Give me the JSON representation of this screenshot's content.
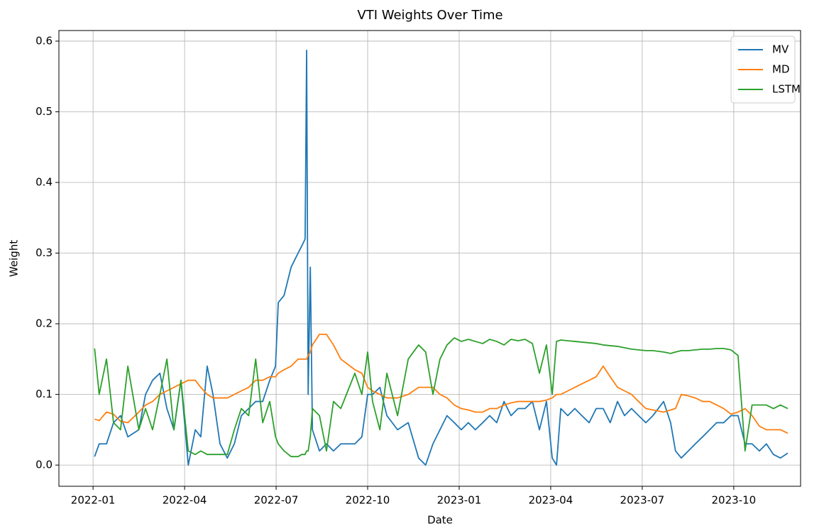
{
  "chart_data": {
    "type": "line",
    "title": "VTI Weights Over Time",
    "x_label": "Date",
    "y_label": "Weight",
    "x": [
      0.05,
      0.2,
      0.44,
      0.67,
      0.9,
      1.14,
      1.5,
      1.72,
      1.95,
      2.19,
      2.42,
      2.65,
      2.88,
      3.12,
      3.35,
      3.53,
      3.74,
      3.93,
      4.16,
      4.4,
      4.63,
      4.86,
      5.1,
      5.33,
      5.56,
      5.79,
      5.98,
      6.07,
      6.26,
      6.49,
      6.72,
      6.84,
      6.95,
      7.0,
      7.05,
      7.12,
      7.19,
      7.42,
      7.65,
      7.88,
      8.12,
      8.58,
      8.81,
      9.0,
      9.16,
      9.4,
      9.63,
      9.98,
      10.33,
      10.67,
      10.9,
      11.14,
      11.37,
      11.6,
      11.84,
      12.07,
      12.3,
      12.53,
      12.77,
      13.0,
      13.23,
      13.47,
      13.7,
      13.93,
      14.16,
      14.4,
      14.63,
      14.86,
      15.05,
      15.19,
      15.33,
      15.56,
      15.79,
      16.02,
      16.26,
      16.49,
      16.72,
      16.95,
      17.19,
      17.42,
      17.65,
      17.88,
      18.12,
      18.35,
      18.7,
      18.93,
      19.09,
      19.28,
      19.51,
      19.74,
      19.98,
      20.21,
      20.44,
      20.67,
      20.91,
      21.14,
      21.37,
      21.6,
      21.84,
      22.07,
      22.3,
      22.53,
      22.77
    ],
    "series": [
      {
        "name": "MV",
        "color": "#1f77b4",
        "values": [
          0.012,
          0.03,
          0.03,
          0.06,
          0.07,
          0.04,
          0.05,
          0.1,
          0.12,
          0.13,
          0.08,
          0.05,
          0.12,
          0.0,
          0.05,
          0.04,
          0.14,
          0.1,
          0.03,
          0.01,
          0.03,
          0.07,
          0.08,
          0.09,
          0.09,
          0.12,
          0.14,
          0.23,
          0.24,
          0.28,
          0.3,
          0.31,
          0.32,
          0.587,
          0.1,
          0.28,
          0.05,
          0.02,
          0.03,
          0.02,
          0.03,
          0.03,
          0.04,
          0.1,
          0.1,
          0.11,
          0.07,
          0.05,
          0.06,
          0.01,
          0.0,
          0.03,
          0.05,
          0.07,
          0.06,
          0.05,
          0.06,
          0.05,
          0.06,
          0.07,
          0.06,
          0.09,
          0.07,
          0.08,
          0.08,
          0.09,
          0.05,
          0.09,
          0.01,
          0.0,
          0.08,
          0.07,
          0.08,
          0.07,
          0.06,
          0.08,
          0.08,
          0.06,
          0.09,
          0.07,
          0.08,
          0.07,
          0.06,
          0.07,
          0.09,
          0.06,
          0.02,
          0.01,
          0.02,
          0.03,
          0.04,
          0.05,
          0.06,
          0.06,
          0.07,
          0.07,
          0.03,
          0.03,
          0.02,
          0.03,
          0.015,
          0.01,
          0.017
        ]
      },
      {
        "name": "MD",
        "color": "#ff7f0e",
        "values": [
          0.065,
          0.063,
          0.075,
          0.072,
          0.062,
          0.06,
          0.075,
          0.085,
          0.09,
          0.1,
          0.105,
          0.11,
          0.115,
          0.12,
          0.12,
          0.11,
          0.1,
          0.095,
          0.095,
          0.095,
          0.1,
          0.105,
          0.11,
          0.12,
          0.12,
          0.125,
          0.125,
          0.13,
          0.135,
          0.14,
          0.15,
          0.15,
          0.15,
          0.15,
          0.155,
          0.16,
          0.17,
          0.185,
          0.185,
          0.17,
          0.15,
          0.135,
          0.13,
          0.11,
          0.105,
          0.1,
          0.095,
          0.095,
          0.1,
          0.11,
          0.11,
          0.11,
          0.1,
          0.095,
          0.085,
          0.08,
          0.078,
          0.075,
          0.075,
          0.08,
          0.08,
          0.085,
          0.088,
          0.09,
          0.09,
          0.09,
          0.09,
          0.092,
          0.095,
          0.1,
          0.1,
          0.105,
          0.11,
          0.115,
          0.12,
          0.125,
          0.14,
          0.125,
          0.11,
          0.105,
          0.1,
          0.09,
          0.08,
          0.078,
          0.075,
          0.078,
          0.08,
          0.1,
          0.098,
          0.095,
          0.09,
          0.09,
          0.085,
          0.08,
          0.072,
          0.075,
          0.08,
          0.07,
          0.055,
          0.05,
          0.05,
          0.05,
          0.045
        ]
      },
      {
        "name": "LSTM",
        "color": "#2ca02c",
        "values": [
          0.165,
          0.1,
          0.15,
          0.06,
          0.05,
          0.14,
          0.05,
          0.08,
          0.05,
          0.1,
          0.15,
          0.05,
          0.12,
          0.02,
          0.015,
          0.02,
          0.015,
          0.015,
          0.015,
          0.015,
          0.05,
          0.08,
          0.07,
          0.15,
          0.06,
          0.09,
          0.04,
          0.03,
          0.02,
          0.012,
          0.012,
          0.015,
          0.015,
          0.02,
          0.02,
          0.04,
          0.08,
          0.07,
          0.02,
          0.09,
          0.08,
          0.13,
          0.1,
          0.16,
          0.09,
          0.05,
          0.13,
          0.07,
          0.15,
          0.17,
          0.16,
          0.1,
          0.15,
          0.17,
          0.18,
          0.175,
          0.178,
          0.175,
          0.172,
          0.178,
          0.175,
          0.17,
          0.178,
          0.176,
          0.178,
          0.172,
          0.13,
          0.17,
          0.1,
          0.175,
          0.177,
          0.176,
          0.175,
          0.174,
          0.173,
          0.172,
          0.17,
          0.169,
          0.168,
          0.166,
          0.164,
          0.163,
          0.162,
          0.162,
          0.16,
          0.158,
          0.16,
          0.162,
          0.162,
          0.163,
          0.164,
          0.164,
          0.165,
          0.165,
          0.163,
          0.155,
          0.02,
          0.085,
          0.085,
          0.085,
          0.08,
          0.085,
          0.08
        ]
      }
    ],
    "xlim": [
      -1.12,
      23.19
    ],
    "xticks": [
      {
        "value": 0,
        "label": "2022-01"
      },
      {
        "value": 3,
        "label": "2022-04"
      },
      {
        "value": 6,
        "label": "2022-07"
      },
      {
        "value": 9,
        "label": "2022-10"
      },
      {
        "value": 12,
        "label": "2023-01"
      },
      {
        "value": 15,
        "label": "2023-04"
      },
      {
        "value": 18,
        "label": "2023-07"
      },
      {
        "value": 21,
        "label": "2023-10"
      }
    ],
    "ylim": [
      -0.03,
      0.615
    ],
    "yticks": [
      {
        "value": 0,
        "label": "0.0"
      },
      0.1,
      0.2,
      0.3,
      0.4,
      0.5,
      0.6
    ],
    "grid": true,
    "legend": "upper right"
  }
}
